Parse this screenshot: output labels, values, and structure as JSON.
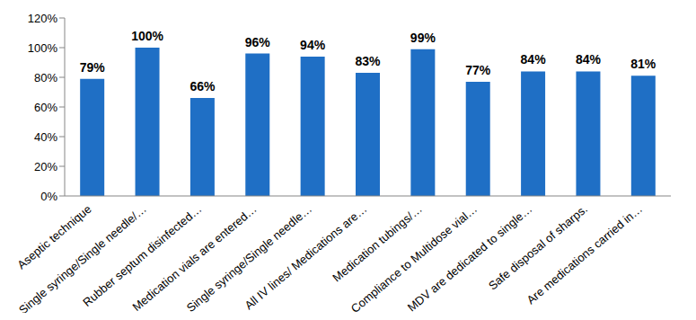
{
  "chart_data": {
    "type": "bar",
    "categories": [
      "Aseptic technique",
      "Single syringe/Single needle/…",
      "Rubber septum disinfected…",
      "Medication vials are entered…",
      "Single syringe/Single needle…",
      "All IV lines/ Medications are…",
      "Medication tubings/…",
      "Compliance to Multidose vial…",
      "MDV are dedicated to single…",
      "Safe disposal of sharps.",
      "Are medications carried in…"
    ],
    "values": [
      79,
      100,
      66,
      96,
      94,
      83,
      99,
      77,
      84,
      84,
      81
    ],
    "value_labels": [
      "79%",
      "100%",
      "66%",
      "96%",
      "94%",
      "83%",
      "99%",
      "77%",
      "84%",
      "84%",
      "81%"
    ],
    "color": "#1f6fc5",
    "ylim": [
      0,
      120
    ],
    "yticks": [
      {
        "value": 0,
        "label": "0%"
      },
      {
        "value": 20,
        "label": "20%"
      },
      {
        "value": 40,
        "label": "40%"
      },
      {
        "value": 60,
        "label": "60%"
      },
      {
        "value": 80,
        "label": "80%"
      },
      {
        "value": 100,
        "label": "100%"
      },
      {
        "value": 120,
        "label": "120%"
      }
    ],
    "grid": false,
    "data_labels": true
  }
}
